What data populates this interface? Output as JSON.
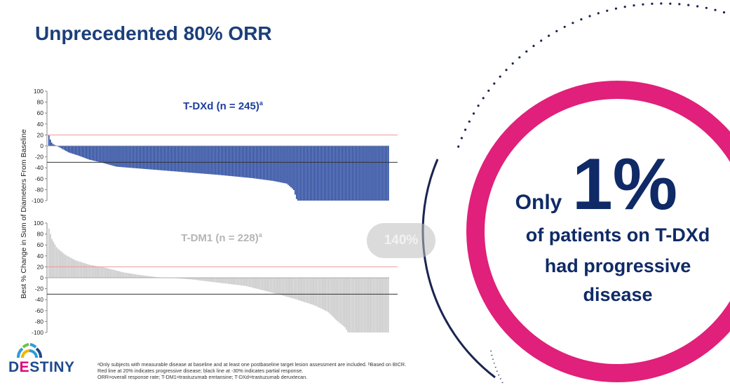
{
  "title": "Unprecedented 80% ORR",
  "colors": {
    "title": "#1b3f7a",
    "tdxd_bars": "#1d3f9a",
    "tdm1_bars": "#c8c8c8",
    "pink_ring": "#e0207a",
    "navy_text": "#0f2a66",
    "ref_red": "#e89a9a",
    "ref_black": "#333333"
  },
  "shared_ylabel": "Best % Change in Sum of Diameters From Baseline",
  "callout": {
    "only": "Only",
    "big": "1%",
    "line1": "of patients on T-DXd",
    "line2": "had progressive",
    "line3": "disease"
  },
  "zoom_badge": "140%",
  "logo": {
    "prefix": "D",
    "e": "E",
    "suffix": "STINY",
    "icon": "destiny-arc-icon"
  },
  "footnote": {
    "line1": "ᵃOnly subjects with measurable disease at baseline and at least one postbaseline target lesion assessment are included. ᵇBased on BICR.",
    "line2": "Red line at 20% indicates progressive disease; black line at -30% indicates partial response.",
    "line3": "ORR=overall response rate; T-DM1=trastuzumab emtansine; T-DXd=trastuzumab deruxtecan."
  },
  "chart_data": [
    {
      "type": "bar",
      "title": "T-DXd (n = 245)",
      "title_sup": "a",
      "n": 245,
      "ylabel": "Best % Change in Sum of Diameters From Baseline",
      "ylim": [
        -100,
        100
      ],
      "yticks": [
        "100",
        "80",
        "60",
        "40",
        "20",
        "0",
        "-20",
        "-40",
        "-60",
        "-80",
        "-100"
      ],
      "reference_lines": [
        {
          "y": 20,
          "color": "red"
        },
        {
          "y": -30,
          "color": "black"
        }
      ],
      "profile": [
        {
          "pct": 0,
          "y": 24
        },
        {
          "pct": 0.3,
          "y": 17
        },
        {
          "pct": 0.7,
          "y": 10
        },
        {
          "pct": 1.2,
          "y": 4
        },
        {
          "pct": 2.5,
          "y": 0
        },
        {
          "pct": 4,
          "y": -5
        },
        {
          "pct": 6,
          "y": -12
        },
        {
          "pct": 9,
          "y": -18
        },
        {
          "pct": 12,
          "y": -25
        },
        {
          "pct": 16,
          "y": -31
        },
        {
          "pct": 20,
          "y": -38
        },
        {
          "pct": 30,
          "y": -43
        },
        {
          "pct": 40,
          "y": -48
        },
        {
          "pct": 50,
          "y": -53
        },
        {
          "pct": 60,
          "y": -59
        },
        {
          "pct": 66,
          "y": -64
        },
        {
          "pct": 70,
          "y": -69
        },
        {
          "pct": 72,
          "y": -80
        },
        {
          "pct": 73,
          "y": -100
        },
        {
          "pct": 100,
          "y": -100
        }
      ]
    },
    {
      "type": "bar",
      "title": "T-DM1 (n = 228)",
      "title_sup": "a",
      "n": 228,
      "ylabel": "Best % Change in Sum of Diameters From Baseline",
      "ylim": [
        -100,
        100
      ],
      "yticks": [
        "100",
        "80",
        "60",
        "40",
        "20",
        "0",
        "-20",
        "-40",
        "-60",
        "-80",
        "-100"
      ],
      "reference_lines": [
        {
          "y": 20,
          "color": "red"
        },
        {
          "y": -30,
          "color": "black"
        }
      ],
      "profile": [
        {
          "pct": 0,
          "y": 95
        },
        {
          "pct": 1,
          "y": 72
        },
        {
          "pct": 2.5,
          "y": 55
        },
        {
          "pct": 5,
          "y": 42
        },
        {
          "pct": 8,
          "y": 32
        },
        {
          "pct": 12,
          "y": 24
        },
        {
          "pct": 17,
          "y": 18
        },
        {
          "pct": 22,
          "y": 10
        },
        {
          "pct": 27,
          "y": 5
        },
        {
          "pct": 32,
          "y": 1
        },
        {
          "pct": 36,
          "y": 0
        },
        {
          "pct": 42,
          "y": -3
        },
        {
          "pct": 50,
          "y": -9
        },
        {
          "pct": 58,
          "y": -15
        },
        {
          "pct": 65,
          "y": -26
        },
        {
          "pct": 72,
          "y": -38
        },
        {
          "pct": 78,
          "y": -50
        },
        {
          "pct": 82,
          "y": -62
        },
        {
          "pct": 85,
          "y": -80
        },
        {
          "pct": 87,
          "y": -90
        },
        {
          "pct": 88,
          "y": -100
        },
        {
          "pct": 100,
          "y": -100
        }
      ]
    }
  ]
}
